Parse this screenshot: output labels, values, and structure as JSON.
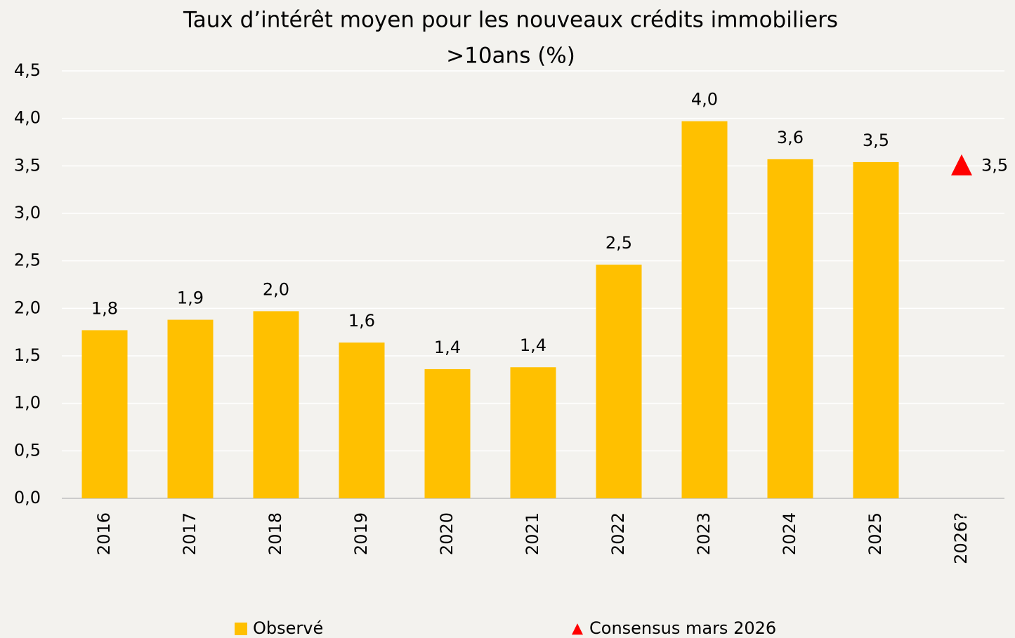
{
  "chart_data": {
    "type": "bar",
    "title": [
      "Taux d’intérêt moyen pour les nouveaux crédits immobiliers",
      ">10ans (%)"
    ],
    "categories": [
      "2016",
      "2017",
      "2018",
      "2019",
      "2020",
      "2021",
      "2022",
      "2023",
      "2024",
      "2025",
      "2026?"
    ],
    "series": [
      {
        "name": "Observé",
        "color": "#ffc000",
        "values": [
          1.77,
          1.88,
          1.97,
          1.64,
          1.36,
          1.38,
          2.46,
          3.97,
          3.57,
          3.54,
          null
        ],
        "value_labels": [
          "1,8",
          "1,9",
          "2,0",
          "1,6",
          "1,4",
          "1,4",
          "2,5",
          "4,0",
          "3,6",
          "3,5",
          null
        ]
      },
      {
        "name": "Consensus mars 2026",
        "color": "#ff0000",
        "marker": "triangle",
        "values": [
          null,
          null,
          null,
          null,
          null,
          null,
          null,
          null,
          null,
          null,
          3.5
        ],
        "value_labels": [
          null,
          null,
          null,
          null,
          null,
          null,
          null,
          null,
          null,
          null,
          "3,5"
        ]
      }
    ],
    "ylim": [
      0,
      4.5
    ],
    "yticks": [
      {
        "value": 0,
        "label": "0,0"
      },
      {
        "value": 0.5,
        "label": "0,5"
      },
      {
        "value": 1,
        "label": "1,0"
      },
      {
        "value": 1.5,
        "label": "1,5"
      },
      {
        "value": 2,
        "label": "2,0"
      },
      {
        "value": 2.5,
        "label": "2,5"
      },
      {
        "value": 3,
        "label": "3,0"
      },
      {
        "value": 3.5,
        "label": "3,5"
      },
      {
        "value": 4,
        "label": "4,0"
      },
      {
        "value": 4.5,
        "label": "4,5"
      }
    ],
    "grid": true,
    "legend": "bottom"
  }
}
